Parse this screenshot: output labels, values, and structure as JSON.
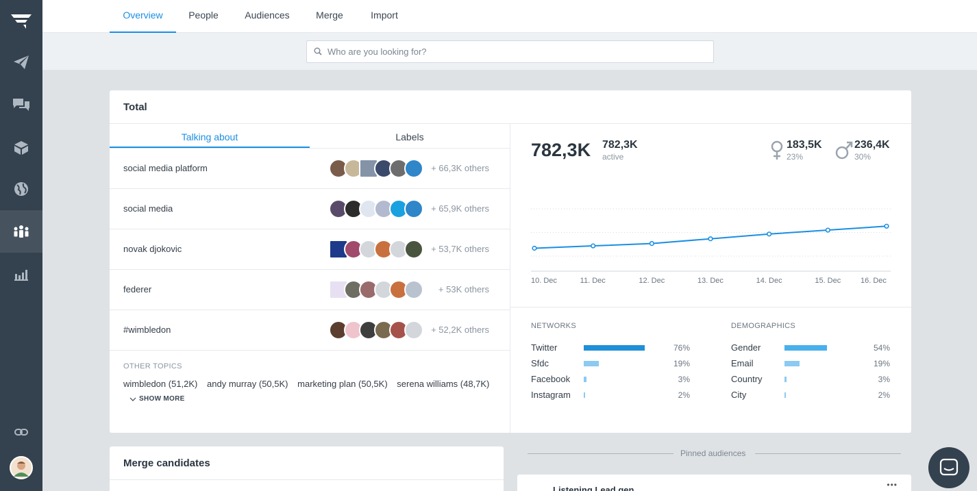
{
  "nav": {
    "tabs": [
      "Overview",
      "People",
      "Audiences",
      "Merge",
      "Import"
    ],
    "active_tab": "Overview"
  },
  "search": {
    "placeholder": "Who are you looking for?"
  },
  "total": {
    "title": "Total",
    "subtabs": [
      "Talking about",
      "Labels"
    ],
    "topics": [
      {
        "name": "social media platform",
        "others": "+ 66,3K others"
      },
      {
        "name": "social media",
        "others": "+ 65,9K others"
      },
      {
        "name": "novak djokovic",
        "others": "+ 53,7K others"
      },
      {
        "name": "federer",
        "others": "+ 53K others"
      },
      {
        "name": "#wimbledon",
        "others": "+ 52,2K others"
      }
    ],
    "other_topics_title": "OTHER TOPICS",
    "other_topics": [
      "wimbledon (51,2K)",
      "andy murray (50,5K)",
      "marketing plan (50,5K)",
      "serena williams (48,7K)"
    ],
    "show_more": "SHOW MORE"
  },
  "stats": {
    "total": "782,3K",
    "active_value": "782,3K",
    "active_label": "active",
    "female_value": "183,5K",
    "female_pct": "23%",
    "male_value": "236,4K",
    "male_pct": "30%"
  },
  "chart_data": {
    "type": "line",
    "x": [
      "10. Dec",
      "11. Dec",
      "12. Dec",
      "13. Dec",
      "14. Dec",
      "15. Dec",
      "16. Dec"
    ],
    "series": [
      {
        "values": [
          0.3,
          0.33,
          0.36,
          0.42,
          0.48,
          0.53,
          0.58
        ]
      }
    ],
    "ylim": [
      0,
      1
    ],
    "grid": true,
    "color": "#1a8fe3"
  },
  "networks": {
    "title": "NETWORKS",
    "items": [
      {
        "label": "Twitter",
        "pct": "76%",
        "value": 76
      },
      {
        "label": "Sfdc",
        "pct": "19%",
        "value": 19
      },
      {
        "label": "Facebook",
        "pct": "3%",
        "value": 3
      },
      {
        "label": "Instagram",
        "pct": "2%",
        "value": 2
      }
    ]
  },
  "demographics": {
    "title": "DEMOGRAPHICS",
    "items": [
      {
        "label": "Gender",
        "pct": "54%",
        "value": 54
      },
      {
        "label": "Email",
        "pct": "19%",
        "value": 19
      },
      {
        "label": "Country",
        "pct": "3%",
        "value": 3
      },
      {
        "label": "City",
        "pct": "2%",
        "value": 2
      }
    ]
  },
  "merge": {
    "title": "Merge candidates"
  },
  "pinned": {
    "label": "Pinned audiences",
    "card_title": "Listening Lead gen"
  },
  "colors": {
    "accent": "#1a8fe3",
    "bar_primary": "#1f8fd8",
    "bar_secondary": "#8ccaf2",
    "demographic_bar": "#49b0ec",
    "sidebar": "#34414e"
  },
  "icons": [
    "logo-icon",
    "paper-plane-icon",
    "chat-icon",
    "box-icon",
    "globe-icon",
    "people-icon",
    "bar-chart-icon",
    "link-icon",
    "user-avatar",
    "search-icon",
    "female-icon",
    "male-icon",
    "chevron-down-icon",
    "more-icon",
    "messenger-icon"
  ]
}
